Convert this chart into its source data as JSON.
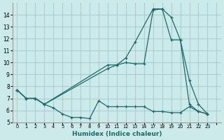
{
  "background_color": "#cdeaea",
  "grid_color": "#aacfcf",
  "line_color": "#1a6b6b",
  "xlabel": "Humidex (Indice chaleur)",
  "xlim": [
    -0.5,
    22.5
  ],
  "ylim": [
    5,
    15
  ],
  "yticks": [
    5,
    6,
    7,
    8,
    9,
    10,
    11,
    12,
    13,
    14
  ],
  "xtick_positions": [
    0,
    1,
    2,
    3,
    4,
    5,
    6,
    7,
    8,
    9,
    10,
    11,
    12,
    13,
    14,
    15,
    16,
    17,
    18,
    19,
    20,
    21,
    22
  ],
  "xtick_labels": [
    "0",
    "1",
    "2",
    "3",
    "4",
    "5",
    "6",
    "7",
    "8",
    "9",
    "10",
    "11",
    "12",
    "13",
    "14",
    "17",
    "18",
    "19",
    "20",
    "21",
    "22",
    "23",
    ""
  ],
  "series": [
    {
      "x": [
        0,
        1,
        2,
        3,
        10,
        11,
        12,
        13,
        15,
        16,
        17,
        18,
        19,
        20,
        21
      ],
      "y": [
        7.7,
        7.0,
        7.0,
        6.5,
        9.8,
        9.8,
        10.4,
        11.7,
        14.5,
        14.5,
        13.8,
        11.9,
        8.5,
        6.5,
        5.7
      ]
    },
    {
      "x": [
        0,
        1,
        2,
        3,
        10,
        11,
        12,
        13,
        14,
        15,
        16,
        17,
        18,
        19,
        20,
        21
      ],
      "y": [
        7.7,
        7.0,
        7.0,
        6.5,
        9.5,
        9.8,
        10.0,
        9.9,
        9.9,
        14.4,
        14.5,
        11.9,
        11.9,
        6.5,
        5.9,
        5.7
      ]
    },
    {
      "x": [
        0,
        1,
        2,
        3,
        4,
        5,
        6,
        7,
        8,
        9,
        10,
        11,
        12,
        13,
        14,
        15,
        16,
        17,
        18,
        19,
        20,
        21
      ],
      "y": [
        7.7,
        7.0,
        7.0,
        6.5,
        6.2,
        5.7,
        5.4,
        5.4,
        5.3,
        6.8,
        6.3,
        6.3,
        6.3,
        6.3,
        6.3,
        5.9,
        5.9,
        5.8,
        5.8,
        6.3,
        5.9,
        5.7
      ]
    }
  ]
}
